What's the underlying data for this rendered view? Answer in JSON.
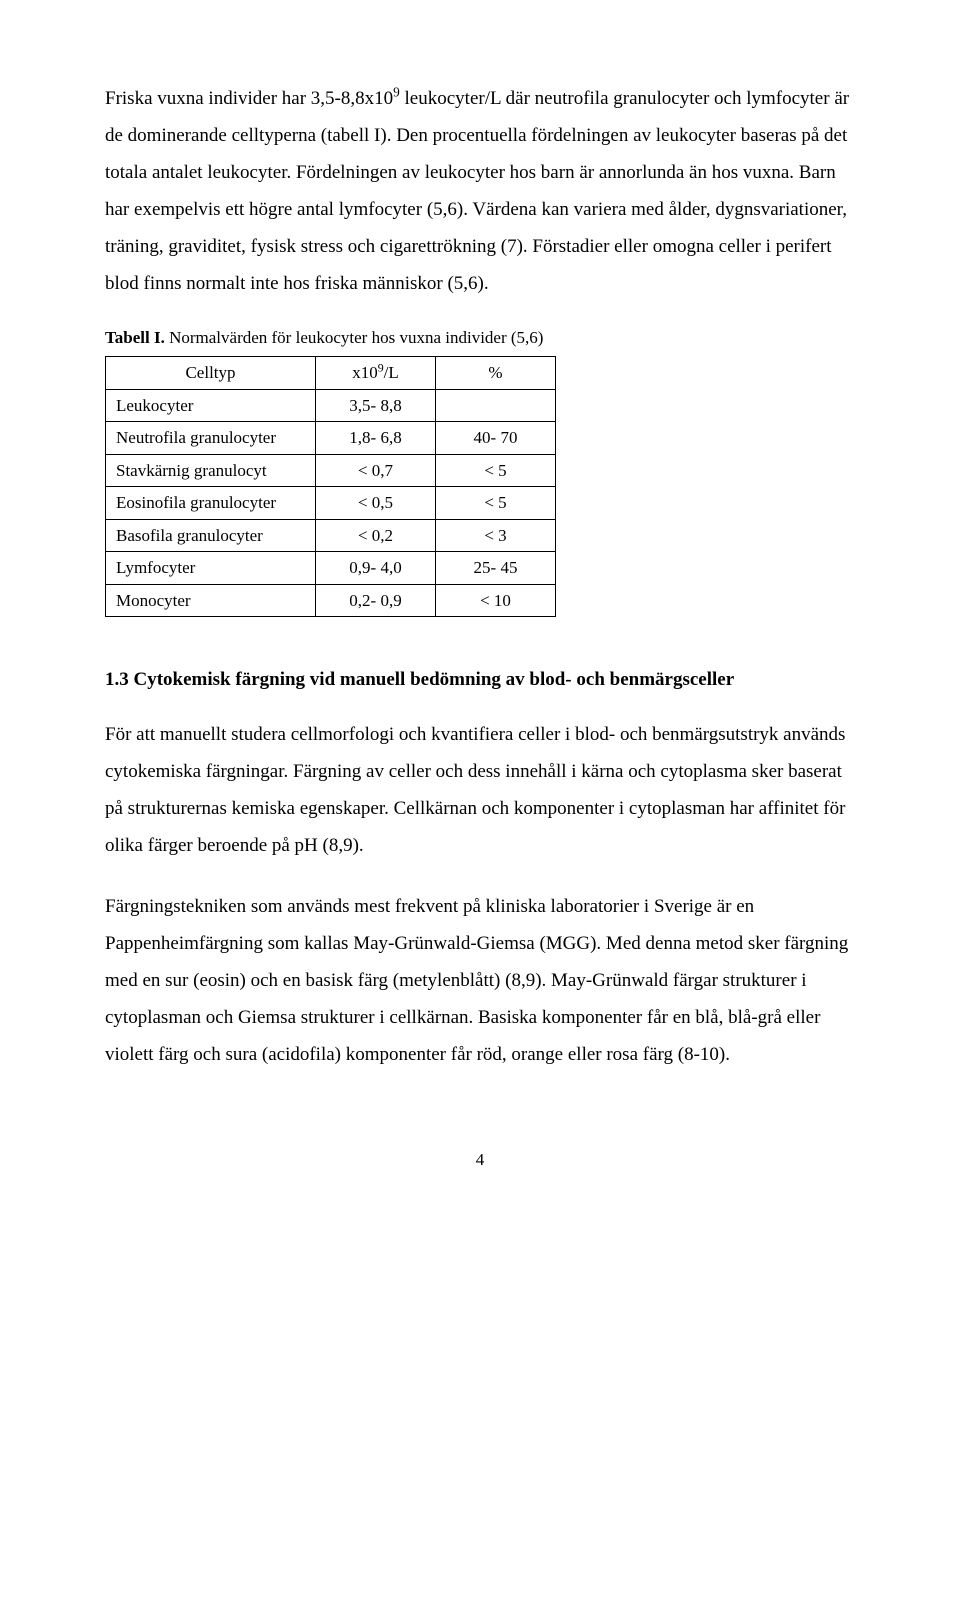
{
  "paragraphs": {
    "p1a": "Friska vuxna individer har 3,5-8,8x10",
    "p1sup": "9",
    "p1b": " leukocyter/L där neutrofila granulocyter och lymfocyter är de dominerande celltyperna (tabell I). Den procentuella fördelningen av leukocyter baseras på det totala antalet leukocyter. Fördelningen av leukocyter hos barn är annorlunda än hos vuxna. Barn har exempelvis ett högre antal lymfocyter (5,6). Värdena kan variera med ålder, dygnsvariationer, träning, graviditet, fysisk stress och cigarettrökning (7). Förstadier eller omogna celler i perifert blod finns normalt inte hos friska människor (5,6).",
    "p2": "För att manuellt studera cellmorfologi och kvantifiera celler i blod- och benmärgsutstryk används cytokemiska färgningar. Färgning av celler och dess innehåll i kärna och cytoplasma sker baserat på strukturernas kemiska egenskaper. Cellkärnan och komponenter i cytoplasman har affinitet för olika färger beroende på pH (8,9).",
    "p3": "Färgningstekniken som används mest frekvent på kliniska laboratorier i Sverige är en Pappenheimfärgning som kallas May-Grünwald-Giemsa (MGG). Med denna metod sker färgning med en sur (eosin) och en basisk färg (metylenblått) (8,9). May-Grünwald färgar strukturer i cytoplasman och Giemsa strukturer i cellkärnan. Basiska komponenter får en blå, blå-grå eller violett färg och sura (acidofila) komponenter får röd, orange eller rosa färg (8-10)."
  },
  "table": {
    "caption_bold": "Tabell I.",
    "caption_rest": " Normalvärden för leukocyter hos vuxna individer (5,6)",
    "header_col1": "Celltyp",
    "header_col2a": "x10",
    "header_col2sup": "9",
    "header_col2b": "/L",
    "header_col3": "%",
    "rows": [
      {
        "c1": "Leukocyter",
        "c2": "3,5- 8,8",
        "c3": ""
      },
      {
        "c1": "Neutrofila granulocyter",
        "c2": "1,8- 6,8",
        "c3": "40- 70"
      },
      {
        "c1": "Stavkärnig granulocyt",
        "c2": "< 0,7",
        "c3": "< 5"
      },
      {
        "c1": "Eosinofila granulocyter",
        "c2": "< 0,5",
        "c3": "< 5"
      },
      {
        "c1": "Basofila granulocyter",
        "c2": "< 0,2",
        "c3": "< 3"
      },
      {
        "c1": "Lymfocyter",
        "c2": "0,9- 4,0",
        "c3": "25- 45"
      },
      {
        "c1": "Monocyter",
        "c2": "0,2- 0,9",
        "c3": "< 10"
      }
    ],
    "col_widths": [
      "210px",
      "120px",
      "120px"
    ]
  },
  "heading": "1.3 Cytokemisk färgning vid manuell bedömning av blod- och benmärgsceller",
  "page_number": "4"
}
